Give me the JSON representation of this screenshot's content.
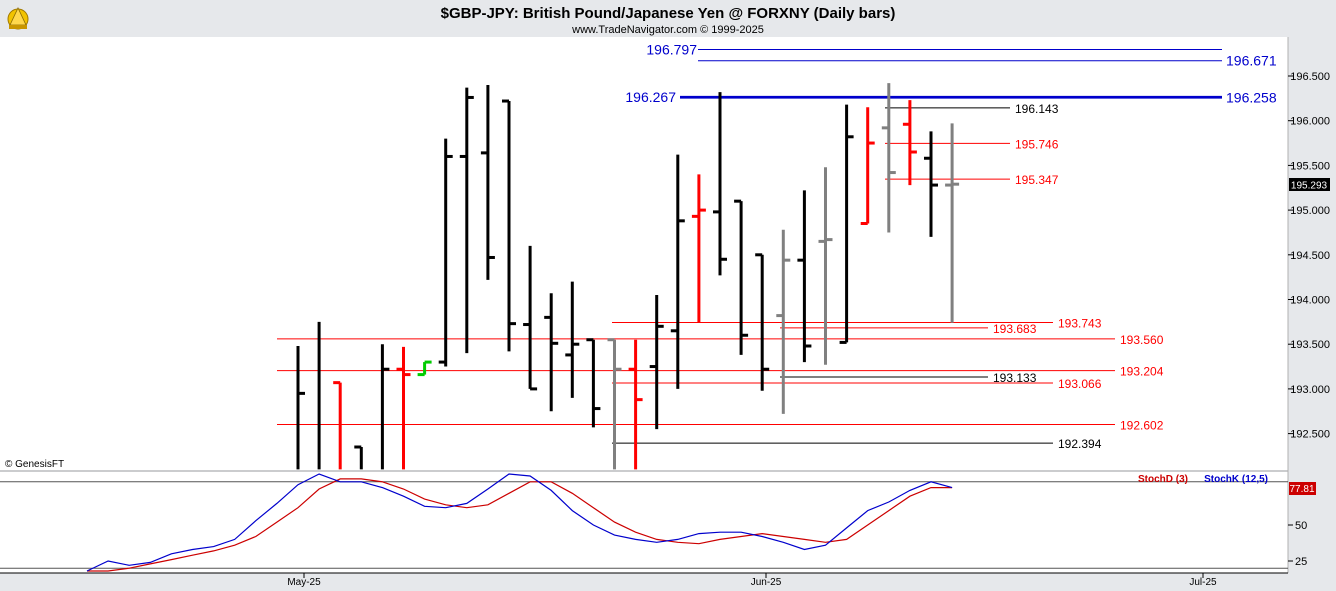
{
  "header": {
    "title": "$GBP-JPY:  British Pound/Japanese Yen @ FORXNY  (Daily bars)",
    "subtitle": "www.TradeNavigator.com © 1999-2025"
  },
  "watermark": "© GenesisFT",
  "colors": {
    "background": "#ffffff",
    "frame": "#e6e8eb",
    "bar_up": "#000000",
    "bar_red": "#ff0000",
    "bar_gray": "#808080",
    "bar_green": "#00cc00",
    "level_blue": "#0000cc",
    "level_red": "#ff0000",
    "stochD": "#cc0000",
    "stochK": "#0000cc"
  },
  "chart_data": [
    {
      "type": "bar",
      "subtype": "ohlc",
      "price_axis": {
        "ylim": [
          192.1,
          196.95
        ],
        "ticks": [
          "196.500",
          "196.000",
          "195.500",
          "195.000",
          "194.500",
          "194.000",
          "193.500",
          "193.000",
          "192.500"
        ],
        "tick_values": [
          196.5,
          196.0,
          195.5,
          195.0,
          194.5,
          194.0,
          193.5,
          193.0,
          192.5
        ]
      },
      "last_price": "195.293",
      "x_labels": [
        "May-25",
        "Jun-25",
        "Jul-25"
      ],
      "bars": [
        {
          "i": 0,
          "o": 192.1,
          "h": 193.48,
          "l": 192.1,
          "c": 192.95,
          "color": "black"
        },
        {
          "i": 1,
          "o": 192.1,
          "h": 193.75,
          "l": 192.1,
          "c": 192.1,
          "color": "black"
        },
        {
          "i": 2,
          "o": 193.07,
          "h": 193.07,
          "l": 192.1,
          "c": 192.1,
          "color": "red"
        },
        {
          "i": 3,
          "o": 192.35,
          "h": 192.35,
          "l": 192.1,
          "c": 192.1,
          "color": "black"
        },
        {
          "i": 4,
          "o": 192.1,
          "h": 193.5,
          "l": 192.1,
          "c": 193.22,
          "color": "black"
        },
        {
          "i": 5,
          "o": 193.22,
          "h": 193.47,
          "l": 192.1,
          "c": 193.16,
          "color": "red"
        },
        {
          "i": 6,
          "o": 193.16,
          "h": 193.3,
          "l": 193.16,
          "c": 193.3,
          "color": "green"
        },
        {
          "i": 7,
          "o": 193.3,
          "h": 195.8,
          "l": 193.25,
          "c": 195.6,
          "color": "black"
        },
        {
          "i": 8,
          "o": 195.6,
          "h": 196.37,
          "l": 193.4,
          "c": 196.26,
          "color": "black"
        },
        {
          "i": 9,
          "o": 195.64,
          "h": 196.4,
          "l": 194.22,
          "c": 194.47,
          "color": "black"
        },
        {
          "i": 10,
          "o": 196.22,
          "h": 196.22,
          "l": 193.42,
          "c": 193.73,
          "color": "black"
        },
        {
          "i": 11,
          "o": 193.72,
          "h": 194.6,
          "l": 193.0,
          "c": 193.0,
          "color": "black"
        },
        {
          "i": 12,
          "o": 193.8,
          "h": 194.07,
          "l": 192.75,
          "c": 193.51,
          "color": "black"
        },
        {
          "i": 13,
          "o": 193.38,
          "h": 194.2,
          "l": 192.9,
          "c": 193.5,
          "color": "black"
        },
        {
          "i": 14,
          "o": 193.55,
          "h": 193.55,
          "l": 192.57,
          "c": 192.78,
          "color": "black"
        },
        {
          "i": 15,
          "o": 193.55,
          "h": 193.55,
          "l": 192.1,
          "c": 193.22,
          "color": "gray"
        },
        {
          "i": 16,
          "o": 193.22,
          "h": 193.55,
          "l": 192.1,
          "c": 192.88,
          "color": "red"
        },
        {
          "i": 17,
          "o": 193.25,
          "h": 194.05,
          "l": 192.55,
          "c": 193.7,
          "color": "black"
        },
        {
          "i": 18,
          "o": 193.65,
          "h": 195.62,
          "l": 193.0,
          "c": 194.88,
          "color": "black"
        },
        {
          "i": 19,
          "o": 194.93,
          "h": 195.4,
          "l": 193.74,
          "c": 195.0,
          "color": "red"
        },
        {
          "i": 20,
          "o": 194.98,
          "h": 196.32,
          "l": 194.27,
          "c": 194.45,
          "color": "black"
        },
        {
          "i": 21,
          "o": 195.1,
          "h": 195.1,
          "l": 193.38,
          "c": 193.6,
          "color": "black"
        },
        {
          "i": 22,
          "o": 194.5,
          "h": 194.5,
          "l": 192.98,
          "c": 193.22,
          "color": "black"
        },
        {
          "i": 23,
          "o": 193.82,
          "h": 194.78,
          "l": 192.72,
          "c": 194.44,
          "color": "gray"
        },
        {
          "i": 24,
          "o": 194.44,
          "h": 195.22,
          "l": 193.3,
          "c": 193.48,
          "color": "black"
        },
        {
          "i": 25,
          "o": 194.65,
          "h": 195.48,
          "l": 193.27,
          "c": 194.67,
          "color": "gray"
        },
        {
          "i": 26,
          "o": 193.52,
          "h": 196.18,
          "l": 193.52,
          "c": 195.82,
          "color": "black"
        },
        {
          "i": 27,
          "o": 194.85,
          "h": 196.15,
          "l": 194.85,
          "c": 195.75,
          "color": "red"
        },
        {
          "i": 28,
          "o": 195.92,
          "h": 196.42,
          "l": 194.75,
          "c": 195.42,
          "color": "gray"
        },
        {
          "i": 29,
          "o": 195.96,
          "h": 196.23,
          "l": 195.28,
          "c": 195.65,
          "color": "red"
        },
        {
          "i": 30,
          "o": 195.58,
          "h": 195.88,
          "l": 194.7,
          "c": 195.28,
          "color": "black"
        },
        {
          "i": 31,
          "o": 195.28,
          "h": 195.97,
          "l": 193.74,
          "c": 195.29,
          "color": "gray"
        }
      ],
      "levels": [
        {
          "value": 196.797,
          "label": "196.797",
          "color": "blue",
          "label_side": "left"
        },
        {
          "value": 196.671,
          "label": "196.671",
          "color": "blue",
          "label_side": "right"
        },
        {
          "value": 196.267,
          "label": "196.267",
          "color": "blue",
          "label_side": "left",
          "thick": true
        },
        {
          "value": 196.258,
          "label": "196.258",
          "color": "blue",
          "label_side": "right",
          "thick": true
        },
        {
          "value": 196.143,
          "label": "196.143",
          "color": "black",
          "label_side": "right"
        },
        {
          "value": 195.746,
          "label": "195.746",
          "color": "red",
          "label_side": "right"
        },
        {
          "value": 195.347,
          "label": "195.347",
          "color": "red",
          "label_side": "right"
        },
        {
          "value": 193.743,
          "label": "193.743",
          "color": "red",
          "label_side": "right"
        },
        {
          "value": 193.683,
          "label": "193.683",
          "color": "red",
          "label_side": "right"
        },
        {
          "value": 193.56,
          "label": "193.560",
          "color": "red",
          "label_side": "right"
        },
        {
          "value": 193.204,
          "label": "193.204",
          "color": "red",
          "label_side": "right"
        },
        {
          "value": 193.133,
          "label": "193.133",
          "color": "black",
          "label_side": "right"
        },
        {
          "value": 193.066,
          "label": "193.066",
          "color": "red",
          "label_side": "right"
        },
        {
          "value": 192.602,
          "label": "192.602",
          "color": "red",
          "label_side": "right"
        },
        {
          "value": 192.394,
          "label": "192.394",
          "color": "black",
          "label_side": "right"
        }
      ]
    },
    {
      "type": "line",
      "ylim": [
        10,
        100
      ],
      "ticks": [
        "50",
        "25"
      ],
      "tick_values": [
        50,
        25
      ],
      "last_value": "77.81",
      "legend": [
        "StochD (3)",
        "StochK (12,5)"
      ],
      "x": [
        -10,
        -9,
        -8,
        -7,
        -6,
        -5,
        -4,
        -3,
        -2,
        -1,
        0,
        1,
        2,
        3,
        4,
        5,
        6,
        7,
        8,
        9,
        10,
        11,
        12,
        13,
        14,
        15,
        16,
        17,
        18,
        19,
        20,
        21,
        22,
        23,
        24,
        25,
        26,
        27,
        28,
        29,
        30,
        31
      ],
      "series": [
        {
          "name": "StochD (3)",
          "color": "#cc0000",
          "values": [
            12,
            17,
            20,
            23,
            26,
            29,
            32,
            36,
            42,
            52,
            62,
            75,
            82,
            82,
            80,
            75,
            68,
            64,
            62,
            64,
            72,
            80,
            80,
            72,
            62,
            52,
            45,
            40,
            38,
            37,
            40,
            42,
            44,
            42,
            40,
            38,
            40,
            50,
            60,
            70,
            76,
            76
          ]
        },
        {
          "name": "StochK (12,5)",
          "color": "#0000cc",
          "values": [
            15,
            25,
            22,
            24,
            30,
            33,
            35,
            40,
            53,
            65,
            78,
            87,
            80,
            80,
            76,
            70,
            63,
            62,
            65,
            75,
            86,
            84,
            74,
            60,
            50,
            43,
            40,
            38,
            40,
            44,
            45,
            45,
            42,
            38,
            33,
            36,
            48,
            60,
            66,
            74,
            80,
            76
          ]
        }
      ]
    }
  ]
}
